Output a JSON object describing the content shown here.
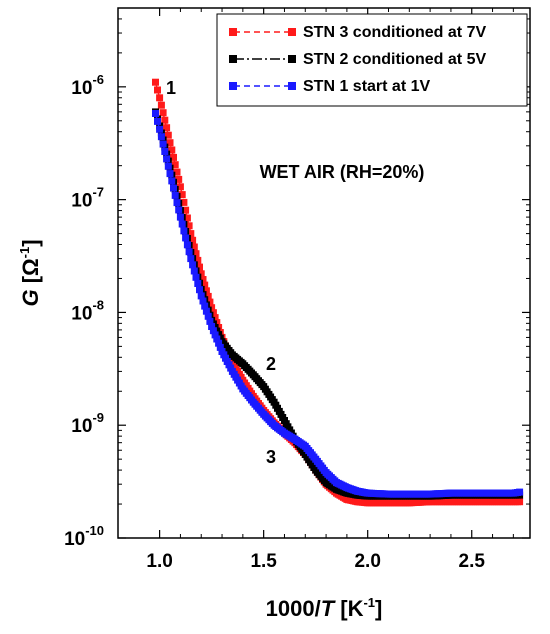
{
  "chart_data": {
    "type": "scatter",
    "xlabel": "1000/T [K-1]",
    "ylabel": "G [Ω-1]",
    "x_ticks": [
      "1.0",
      "1.5",
      "2.0",
      "2.5"
    ],
    "y_ticks": [
      "10-10",
      "10-9",
      "10-8",
      "10-7",
      "10-6"
    ],
    "xlim": [
      0.8,
      2.78
    ],
    "ylim": [
      1e-10,
      5e-06
    ],
    "yscale": "log",
    "grid": false,
    "legend_position": "top-right",
    "annotation": "WET AIR (RH=20%)",
    "curve_labels": [
      "1",
      "2",
      "3"
    ],
    "series": [
      {
        "name": "STN 3 conditioned at 7V",
        "color": "#ff1a1a",
        "line_dash": "dashed",
        "x": [
          0.98,
          1.0,
          1.05,
          1.1,
          1.15,
          1.2,
          1.25,
          1.3,
          1.35,
          1.4,
          1.45,
          1.5,
          1.55,
          1.6,
          1.65,
          1.7,
          1.75,
          1.8,
          1.85,
          1.9,
          1.95,
          2.0,
          2.1,
          2.2,
          2.3,
          2.4,
          2.5,
          2.6,
          2.7,
          2.73
        ],
        "y": [
          1.1e-06,
          8e-07,
          3.2e-07,
          1.3e-07,
          5e-08,
          2.2e-08,
          1.1e-08,
          6e-09,
          3.6e-09,
          2.5e-09,
          1.8e-09,
          1.35e-09,
          1.05e-09,
          8.5e-10,
          7e-10,
          5.5e-10,
          4e-10,
          3e-10,
          2.5e-10,
          2.2e-10,
          2.1e-10,
          2.05e-10,
          2.05e-10,
          2.05e-10,
          2.1e-10,
          2.1e-10,
          2.1e-10,
          2.1e-10,
          2.1e-10,
          2.1e-10
        ]
      },
      {
        "name": "STN 2 conditioned at 5V",
        "color": "#000000",
        "line_dash": "dashdot",
        "x": [
          0.98,
          1.0,
          1.05,
          1.1,
          1.15,
          1.2,
          1.25,
          1.3,
          1.35,
          1.4,
          1.45,
          1.5,
          1.55,
          1.6,
          1.65,
          1.7,
          1.75,
          1.8,
          1.85,
          1.9,
          1.95,
          2.0,
          2.1,
          2.2,
          2.3,
          2.4,
          2.5,
          2.6,
          2.7,
          2.73
        ],
        "y": [
          6e-07,
          4.5e-07,
          1.9e-07,
          8e-08,
          3.4e-08,
          1.6e-08,
          8.5e-09,
          5.5e-09,
          4.2e-09,
          3.5e-09,
          2.8e-09,
          2.2e-09,
          1.6e-09,
          1.1e-09,
          7.5e-10,
          5.5e-10,
          4e-10,
          3.1e-10,
          2.7e-10,
          2.5e-10,
          2.4e-10,
          2.35e-10,
          2.35e-10,
          2.35e-10,
          2.35e-10,
          2.4e-10,
          2.4e-10,
          2.4e-10,
          2.4e-10,
          2.4e-10
        ]
      },
      {
        "name": "STN 1 start at 1V",
        "color": "#1a1aff",
        "line_dash": "dashed",
        "x": [
          0.98,
          1.0,
          1.05,
          1.1,
          1.15,
          1.2,
          1.25,
          1.3,
          1.35,
          1.4,
          1.45,
          1.5,
          1.55,
          1.6,
          1.65,
          1.7,
          1.75,
          1.8,
          1.85,
          1.9,
          1.95,
          2.0,
          2.1,
          2.2,
          2.3,
          2.4,
          2.5,
          2.6,
          2.7,
          2.73
        ],
        "y": [
          5.8e-07,
          4.2e-07,
          1.7e-07,
          7e-08,
          3e-08,
          1.4e-08,
          7.5e-09,
          4.5e-09,
          3e-09,
          2.1e-09,
          1.6e-09,
          1.25e-09,
          1e-09,
          8.5e-10,
          7.5e-10,
          6.5e-10,
          5e-10,
          3.8e-10,
          3.1e-10,
          2.8e-10,
          2.6e-10,
          2.5e-10,
          2.45e-10,
          2.45e-10,
          2.45e-10,
          2.5e-10,
          2.5e-10,
          2.5e-10,
          2.5e-10,
          2.55e-10
        ]
      }
    ]
  }
}
